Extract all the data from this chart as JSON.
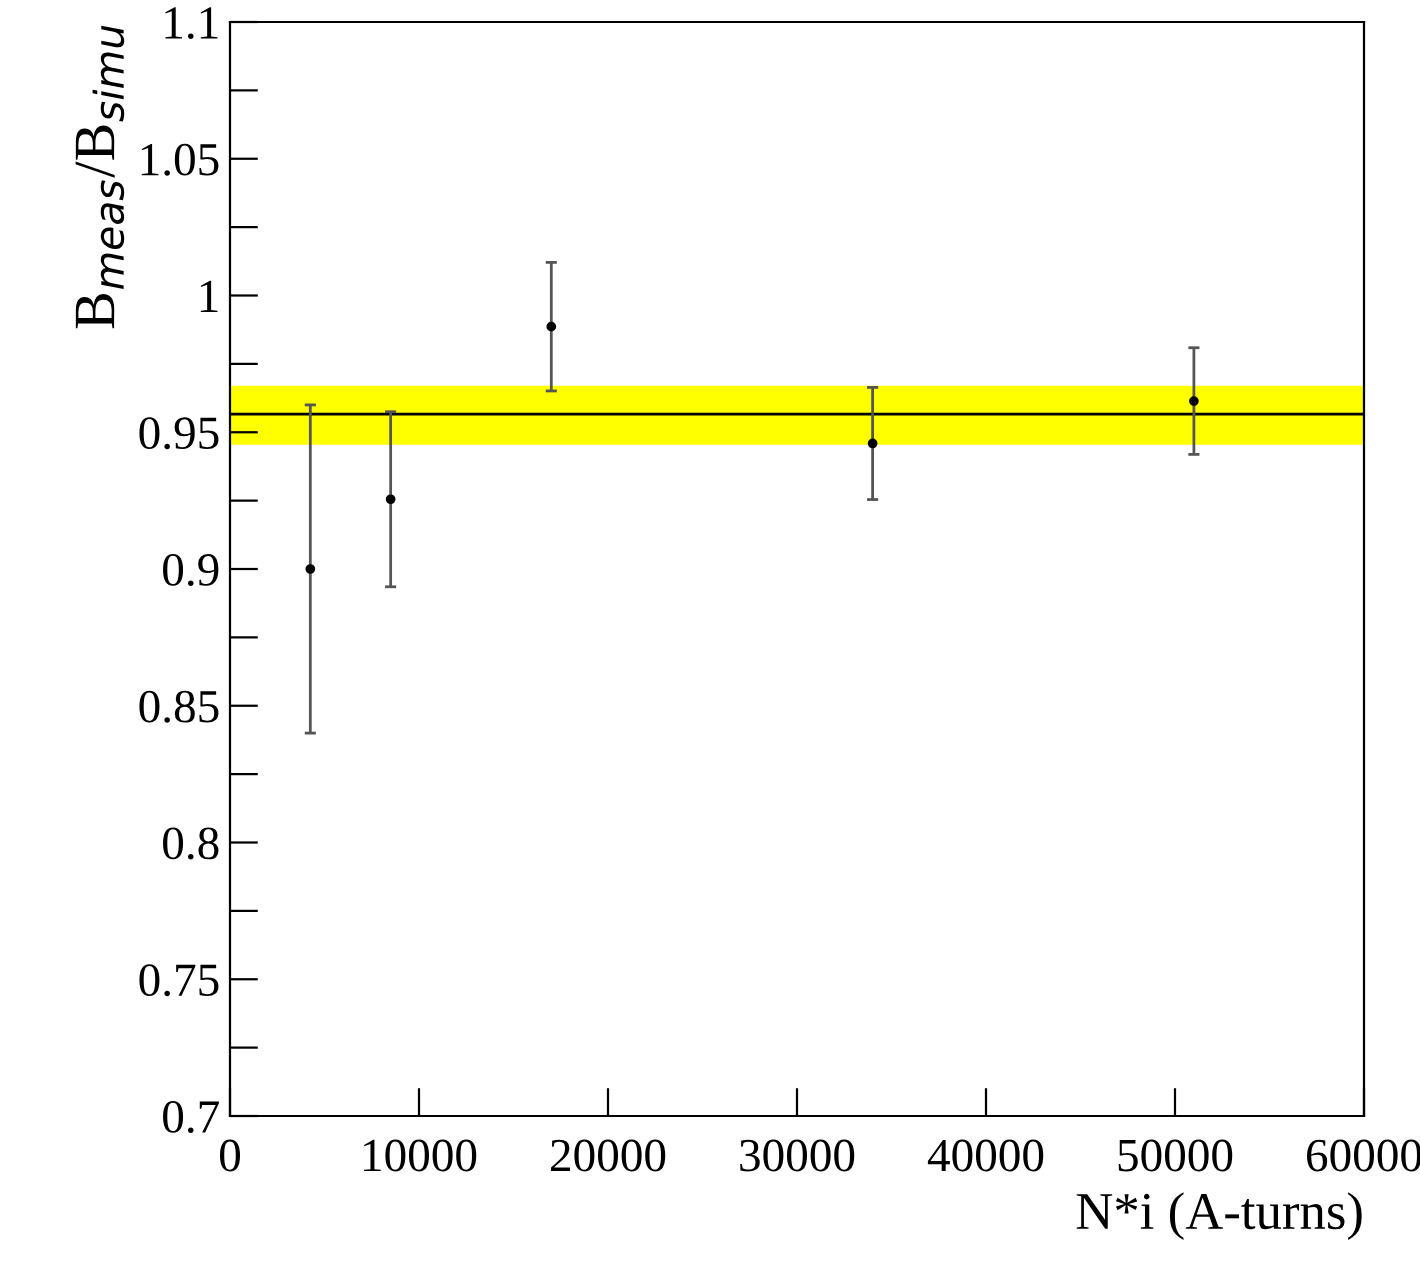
{
  "chart_data": {
    "type": "scatter",
    "xlabel": "N*i (A-turns)",
    "ylabel": "B$_{meas}$/B$_{simu}$",
    "x": [
      4250,
      8500,
      17000,
      34000,
      51000
    ],
    "values": [
      0.9,
      0.9255,
      0.9886,
      0.9459,
      0.9614
    ],
    "errors": [
      0.06,
      0.032,
      0.0235,
      0.0205,
      0.0195
    ],
    "color": "#000000",
    "marker": "circle",
    "xlim": [
      0,
      60000
    ],
    "xticks": [
      0,
      10000,
      20000,
      30000,
      40000,
      50000,
      60000
    ],
    "ylim": [
      0.7,
      1.1
    ],
    "yticks": [
      0.7,
      {
        "value": 0.725,
        "label": null
      },
      0.75,
      {
        "value": 0.775,
        "label": null
      },
      0.8,
      {
        "value": 0.825,
        "label": null
      },
      0.85,
      {
        "value": 0.875,
        "label": null
      },
      0.9,
      {
        "value": 0.925,
        "label": null
      },
      0.95,
      {
        "value": 0.975,
        "label": null
      },
      1,
      {
        "value": 1.025,
        "label": null
      },
      1.05,
      {
        "value": 1.075,
        "label": null
      },
      1.1
    ],
    "bands": [
      {
        "axis": "y",
        "from": 0.9454,
        "to": 0.967,
        "color": "#ffff00"
      }
    ],
    "ref_lines": [
      {
        "axis": "y",
        "value": 0.9566,
        "color": "#000000",
        "line_style": "solid"
      }
    ],
    "grid": false,
    "legend": false
  }
}
